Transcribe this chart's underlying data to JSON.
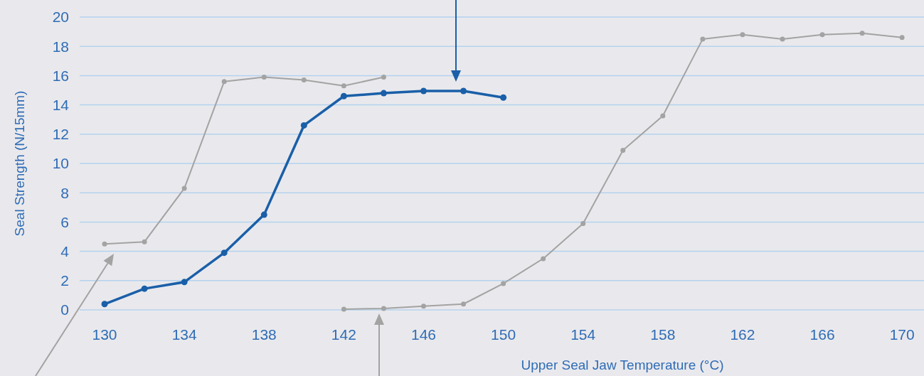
{
  "chart_data": {
    "type": "line",
    "xlabel": "Upper Seal Jaw Temperature (°C)",
    "ylabel": "Seal Strength (N/15mm)",
    "xlim": [
      128.75,
      171.1
    ],
    "xticks": [
      130,
      134,
      138,
      142,
      146,
      150,
      154,
      158,
      162,
      166,
      170
    ],
    "ylim": [
      0,
      20
    ],
    "yticks": [
      0,
      2,
      4,
      6,
      8,
      10,
      12,
      14,
      16,
      18,
      20
    ],
    "grid": "y",
    "marker": "circle",
    "line_style": "solid",
    "series": [
      {
        "color": "#a3a3a3",
        "x": [
          130,
          132,
          134,
          136,
          138,
          140,
          142,
          144
        ],
        "values": [
          4.5,
          4.65,
          8.3,
          15.6,
          15.9,
          15.7,
          15.3,
          15.9
        ]
      },
      {
        "color": "#a3a3a3",
        "x": [
          142,
          144,
          146,
          148,
          150,
          152,
          154,
          156,
          158,
          160,
          162,
          164,
          166,
          168,
          170
        ],
        "values": [
          0.05,
          0.1,
          0.25,
          0.4,
          1.8,
          3.5,
          5.9,
          10.9,
          13.25,
          18.5,
          18.8,
          18.5,
          18.8,
          18.9,
          18.6
        ]
      },
      {
        "color": "#1a5fa8",
        "x": [
          130,
          132,
          134,
          136,
          138,
          140,
          142,
          144,
          146,
          148,
          150
        ],
        "values": [
          0.4,
          1.45,
          1.9,
          3.9,
          6.5,
          12.6,
          14.6,
          14.8,
          14.95,
          14.95,
          14.5
        ]
      }
    ]
  }
}
